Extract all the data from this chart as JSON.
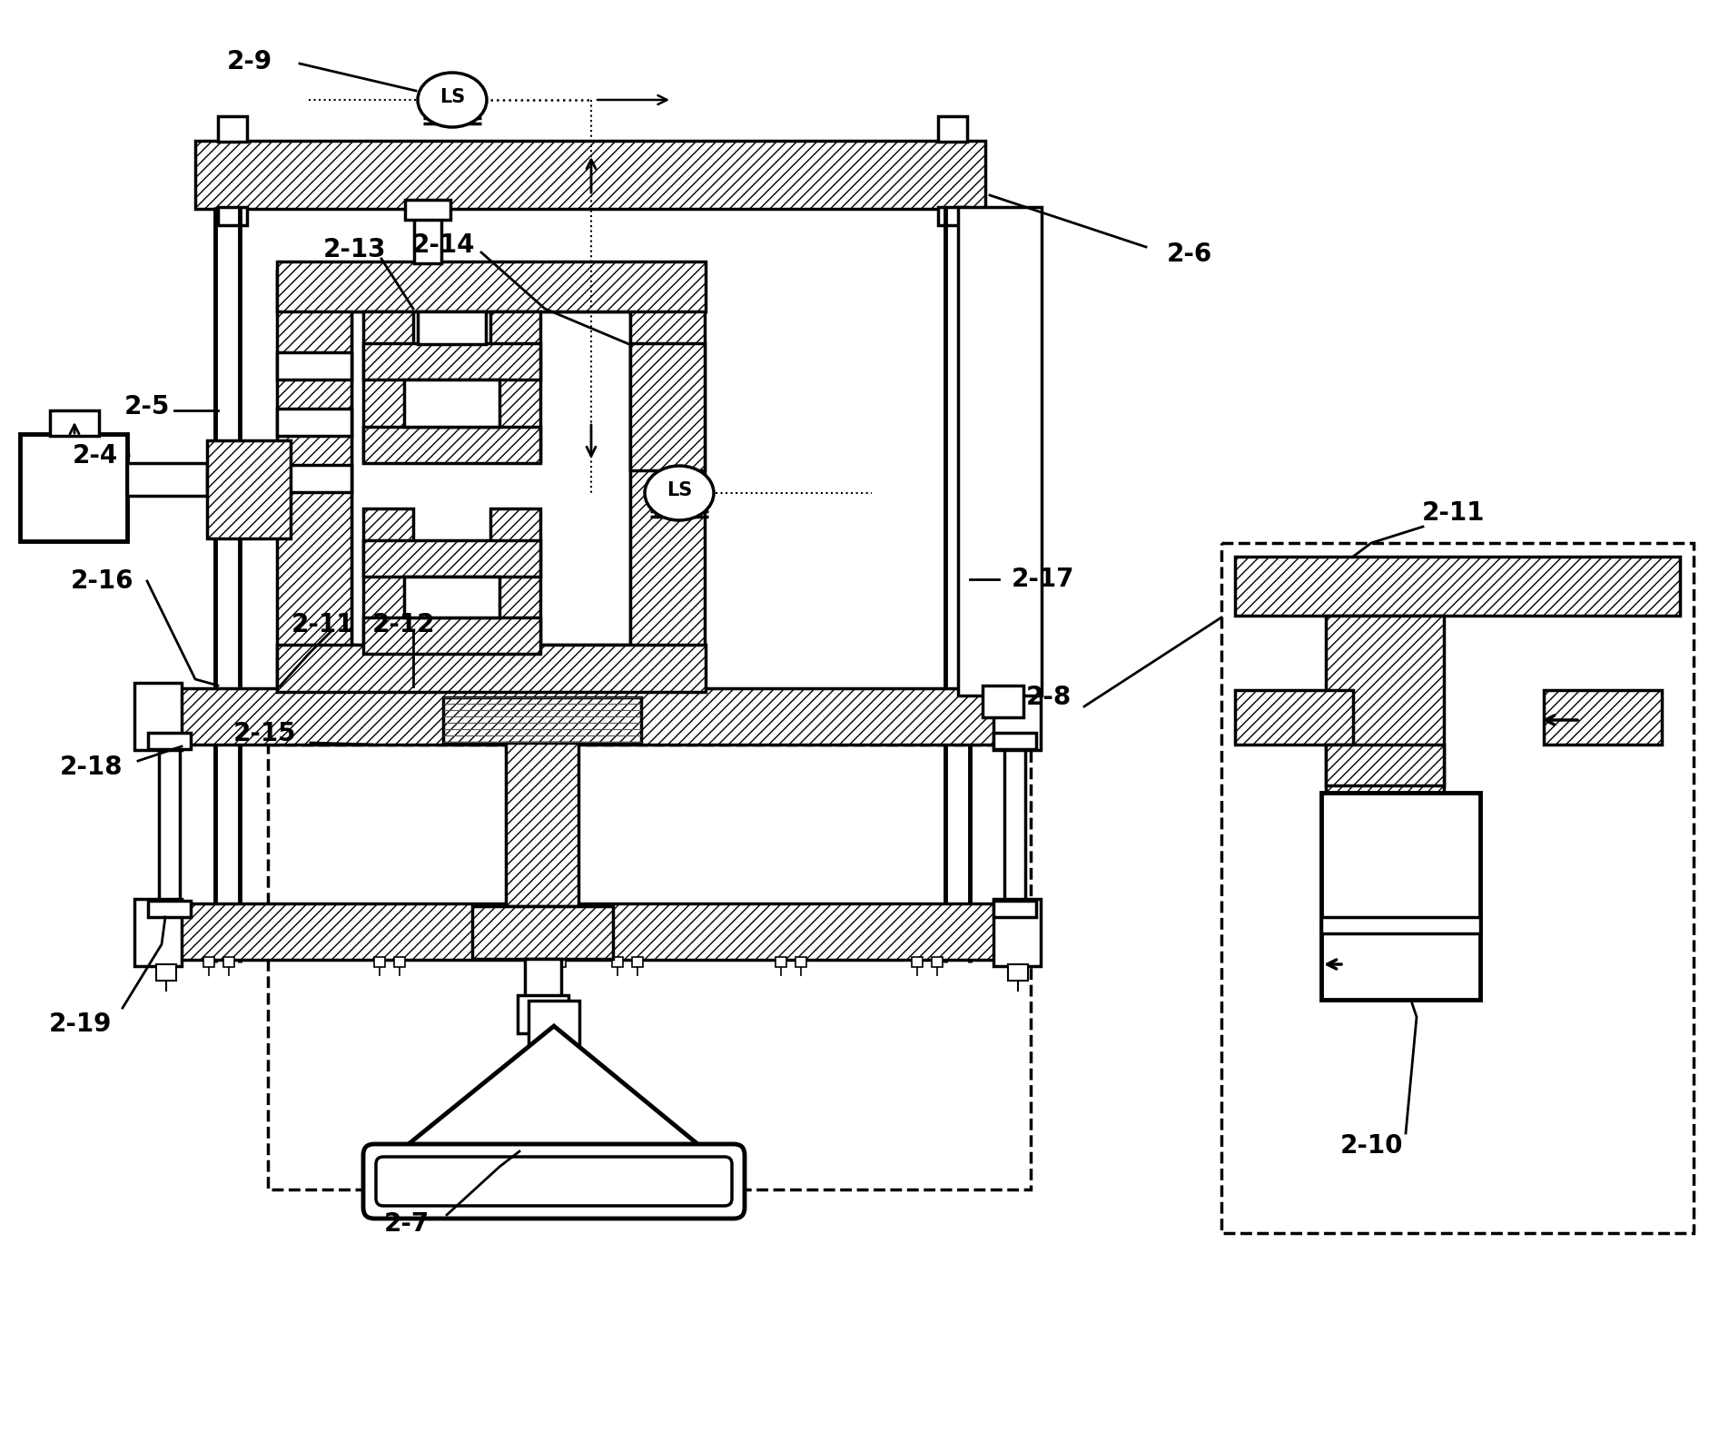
{
  "bg": "#ffffff",
  "lc": "#000000",
  "lw": 2.5,
  "lwt": 3.5,
  "fs": 20,
  "fw": "bold"
}
